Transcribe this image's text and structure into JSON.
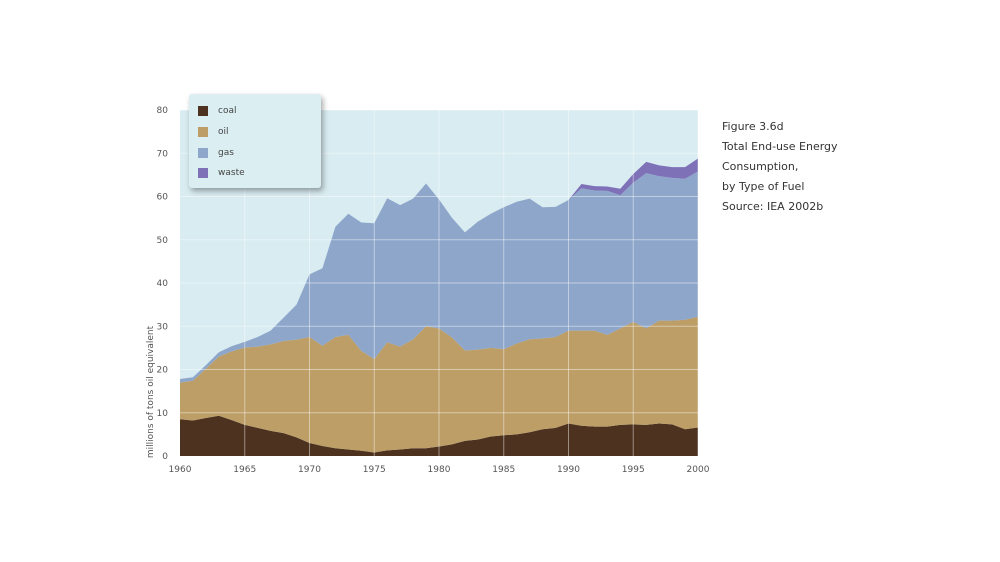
{
  "caption": {
    "line1": "Figure 3.6d",
    "line2": "Total End-use Energy",
    "line3": "Consumption,",
    "line4": "by Type of Fuel",
    "line5": "Source: IEA 2002b"
  },
  "chart_data": {
    "type": "area",
    "stacked": true,
    "title": "",
    "xlabel": "",
    "ylabel": "millions of tons oil equivalent",
    "xlim": [
      1960,
      2000
    ],
    "ylim": [
      0,
      80
    ],
    "x_ticks": [
      1960,
      1965,
      1970,
      1975,
      1980,
      1985,
      1990,
      1995,
      2000
    ],
    "y_ticks": [
      0,
      10,
      20,
      30,
      40,
      50,
      60,
      70,
      80
    ],
    "grid": true,
    "legend_position": "top-left",
    "background_color": "#d8ecf1",
    "x": [
      1960,
      1961,
      1962,
      1963,
      1964,
      1965,
      1966,
      1967,
      1968,
      1969,
      1970,
      1971,
      1972,
      1973,
      1974,
      1975,
      1976,
      1977,
      1978,
      1979,
      1980,
      1981,
      1982,
      1983,
      1984,
      1985,
      1986,
      1987,
      1988,
      1989,
      1990,
      1991,
      1992,
      1993,
      1994,
      1995,
      1996,
      1997,
      1998,
      1999,
      2000
    ],
    "series": [
      {
        "name": "coal",
        "color": "#4e3220",
        "values": [
          8.5,
          8.2,
          8.8,
          9.3,
          8.3,
          7.2,
          6.5,
          5.8,
          5.3,
          4.3,
          3.0,
          2.3,
          1.8,
          1.5,
          1.2,
          0.8,
          1.3,
          1.5,
          1.8,
          1.8,
          2.2,
          2.7,
          3.5,
          3.8,
          4.5,
          4.8,
          5.0,
          5.5,
          6.2,
          6.5,
          7.5,
          7.0,
          6.8,
          6.8,
          7.2,
          7.3,
          7.2,
          7.5,
          7.3,
          6.2,
          6.6
        ]
      },
      {
        "name": "oil",
        "color": "#bd9e66",
        "values": [
          8.5,
          9.2,
          11.4,
          13.7,
          15.9,
          17.9,
          18.8,
          20.0,
          21.3,
          22.6,
          24.5,
          23.2,
          25.7,
          26.5,
          23.1,
          21.6,
          25.0,
          23.8,
          25.2,
          28.2,
          27.3,
          24.7,
          20.9,
          20.8,
          20.5,
          19.9,
          21.0,
          21.5,
          21.0,
          21.0,
          21.5,
          22.0,
          22.2,
          21.2,
          22.3,
          23.7,
          22.3,
          23.8,
          24.0,
          25.3,
          25.6
        ]
      },
      {
        "name": "gas",
        "color": "#8ea6ca",
        "values": [
          0.8,
          0.8,
          0.8,
          1.0,
          1.2,
          1.3,
          2.2,
          3.2,
          5.4,
          8.1,
          14.5,
          17.9,
          25.5,
          28.0,
          29.7,
          31.4,
          33.3,
          32.7,
          32.5,
          33.0,
          29.8,
          27.7,
          27.3,
          29.6,
          31.0,
          32.8,
          32.8,
          32.5,
          30.3,
          30.1,
          30.2,
          32.9,
          32.4,
          33.3,
          30.8,
          32.2,
          35.9,
          33.4,
          33.0,
          32.6,
          33.6
        ]
      },
      {
        "name": "waste",
        "color": "#7f71b8",
        "values": [
          0,
          0,
          0,
          0,
          0,
          0,
          0,
          0,
          0,
          0,
          0,
          0,
          0,
          0,
          0,
          0,
          0,
          0,
          0,
          0,
          0,
          0,
          0,
          0,
          0,
          0,
          0,
          0,
          0,
          0,
          0,
          1.0,
          1.0,
          1.0,
          1.5,
          2.0,
          2.6,
          2.5,
          2.5,
          2.7,
          3.0
        ]
      }
    ]
  }
}
